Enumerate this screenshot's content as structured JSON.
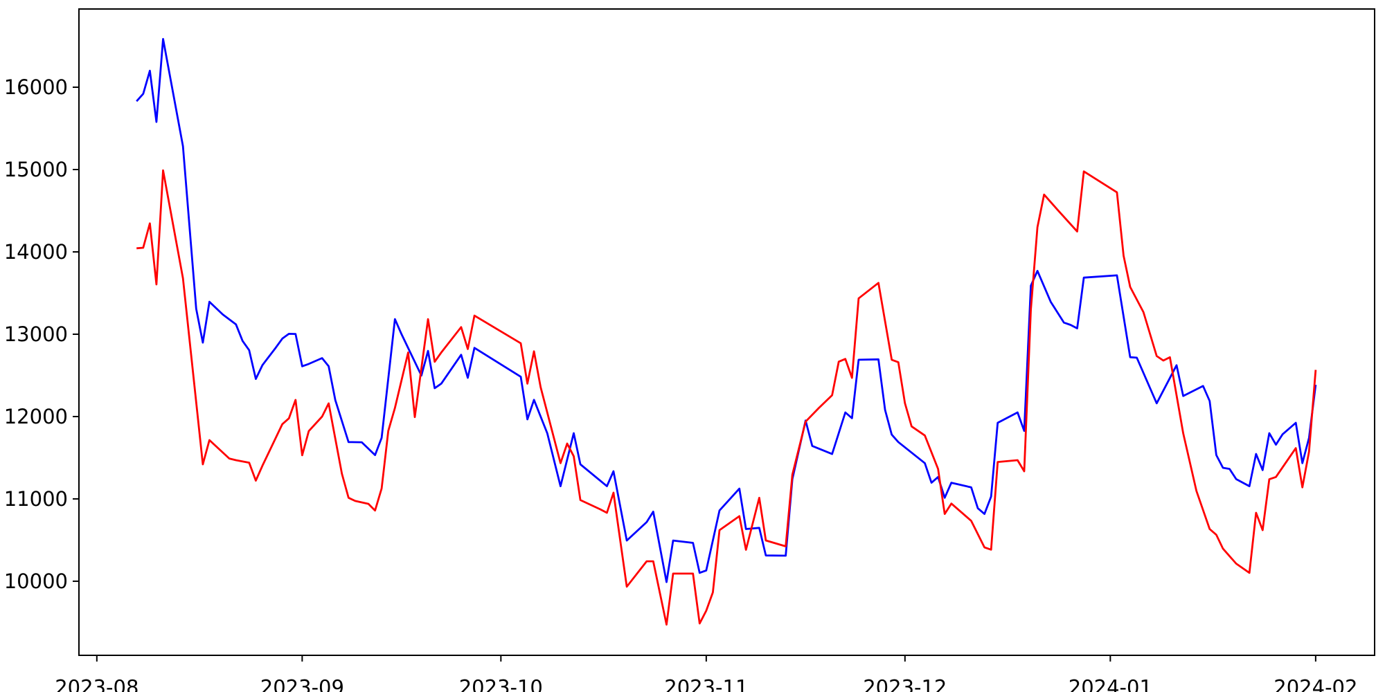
{
  "figure": {
    "kind": "matplotlib-line-plot",
    "background": "#ffffff",
    "title": "",
    "xlabel": "",
    "ylabel": "",
    "grid": false,
    "legend": null
  },
  "colors": {
    "axis": "#000000",
    "tick_label": "#000000",
    "series_blue": "#0000ff",
    "series_red": "#ff0000"
  },
  "chart_data": {
    "type": "line",
    "title": "",
    "xlabel": "",
    "ylabel": "",
    "x_unit": "days_since_2023-08-01",
    "xlim": [
      -2.7,
      192.9
    ],
    "ylim": [
      9100,
      16950
    ],
    "grid": false,
    "legend_position": "none",
    "x_ticks": [
      {
        "label": "2023-08",
        "day": 0
      },
      {
        "label": "2023-09",
        "day": 31
      },
      {
        "label": "2023-10",
        "day": 61
      },
      {
        "label": "2023-11",
        "day": 92
      },
      {
        "label": "2023-12",
        "day": 122
      },
      {
        "label": "2024-01",
        "day": 153
      },
      {
        "label": "2024-02",
        "day": 184
      }
    ],
    "y_ticks": [
      10000,
      11000,
      12000,
      13000,
      14000,
      15000,
      16000
    ],
    "series": [
      {
        "name": "blue",
        "color": "#0000ff",
        "points": [
          [
            6,
            15830
          ],
          [
            7,
            15920
          ],
          [
            8,
            16200
          ],
          [
            9,
            15578
          ],
          [
            10,
            16586
          ],
          [
            13,
            15284
          ],
          [
            15,
            13310
          ],
          [
            16,
            12898
          ],
          [
            17,
            13394
          ],
          [
            19,
            13240
          ],
          [
            21,
            13120
          ],
          [
            22,
            12918
          ],
          [
            23,
            12806
          ],
          [
            24,
            12457
          ],
          [
            25,
            12625
          ],
          [
            27,
            12835
          ],
          [
            28,
            12947
          ],
          [
            29,
            13005
          ],
          [
            30,
            13003
          ],
          [
            31,
            12611
          ],
          [
            32,
            12639
          ],
          [
            34,
            12710
          ],
          [
            35,
            12611
          ],
          [
            36,
            12200
          ],
          [
            38,
            11690
          ],
          [
            40,
            11688
          ],
          [
            42,
            11532
          ],
          [
            43,
            11742
          ],
          [
            45,
            13183
          ],
          [
            46,
            13001
          ],
          [
            49,
            12498
          ],
          [
            50,
            12797
          ],
          [
            51,
            12344
          ],
          [
            52,
            12400
          ],
          [
            55,
            12750
          ],
          [
            56,
            12470
          ],
          [
            57,
            12834
          ],
          [
            64,
            12484
          ],
          [
            65,
            11966
          ],
          [
            66,
            12203
          ],
          [
            68,
            11797
          ],
          [
            70,
            11154
          ],
          [
            72,
            11798
          ],
          [
            73,
            11420
          ],
          [
            77,
            11154
          ],
          [
            78,
            11336
          ],
          [
            80,
            10494
          ],
          [
            83,
            10718
          ],
          [
            84,
            10845
          ],
          [
            86,
            9990
          ],
          [
            87,
            10494
          ],
          [
            90,
            10466
          ],
          [
            91,
            10102
          ],
          [
            92,
            10130
          ],
          [
            94,
            10859
          ],
          [
            97,
            11125
          ],
          [
            98,
            10634
          ],
          [
            100,
            10648
          ],
          [
            101,
            10313
          ],
          [
            104,
            10310
          ],
          [
            105,
            11240
          ],
          [
            107,
            11952
          ],
          [
            108,
            11643
          ],
          [
            111,
            11545
          ],
          [
            113,
            12050
          ],
          [
            114,
            11980
          ],
          [
            115,
            12690
          ],
          [
            118,
            12695
          ],
          [
            119,
            12080
          ],
          [
            120,
            11780
          ],
          [
            121,
            11690
          ],
          [
            125,
            11434
          ],
          [
            126,
            11196
          ],
          [
            127,
            11266
          ],
          [
            128,
            11014
          ],
          [
            129,
            11196
          ],
          [
            132,
            11140
          ],
          [
            133,
            10887
          ],
          [
            134,
            10817
          ],
          [
            135,
            11028
          ],
          [
            136,
            11924
          ],
          [
            139,
            12050
          ],
          [
            140,
            11826
          ],
          [
            141,
            13590
          ],
          [
            142,
            13770
          ],
          [
            144,
            13393
          ],
          [
            146,
            13141
          ],
          [
            147,
            13113
          ],
          [
            148,
            13071
          ],
          [
            149,
            13687
          ],
          [
            154,
            13715
          ],
          [
            156,
            12721
          ],
          [
            157,
            12715
          ],
          [
            160,
            12161
          ],
          [
            163,
            12623
          ],
          [
            164,
            12250
          ],
          [
            167,
            12371
          ],
          [
            168,
            12189
          ],
          [
            169,
            11532
          ],
          [
            170,
            11378
          ],
          [
            171,
            11364
          ],
          [
            172,
            11240
          ],
          [
            174,
            11154
          ],
          [
            175,
            11546
          ],
          [
            176,
            11350
          ],
          [
            177,
            11798
          ],
          [
            178,
            11658
          ],
          [
            179,
            11784
          ],
          [
            181,
            11924
          ],
          [
            182,
            11434
          ],
          [
            183,
            11742
          ],
          [
            184,
            12385
          ]
        ]
      },
      {
        "name": "red",
        "color": "#ff0000",
        "points": [
          [
            6,
            14044
          ],
          [
            7,
            14050
          ],
          [
            8,
            14346
          ],
          [
            9,
            13605
          ],
          [
            10,
            14990
          ],
          [
            13,
            13680
          ],
          [
            16,
            11420
          ],
          [
            17,
            11714
          ],
          [
            20,
            11490
          ],
          [
            21,
            11470
          ],
          [
            23,
            11440
          ],
          [
            24,
            11222
          ],
          [
            25,
            11404
          ],
          [
            28,
            11908
          ],
          [
            29,
            11978
          ],
          [
            30,
            12202
          ],
          [
            31,
            11530
          ],
          [
            32,
            11824
          ],
          [
            34,
            12000
          ],
          [
            35,
            12160
          ],
          [
            37,
            11306
          ],
          [
            38,
            11014
          ],
          [
            39,
            10975
          ],
          [
            41,
            10940
          ],
          [
            42,
            10859
          ],
          [
            43,
            11126
          ],
          [
            44,
            11826
          ],
          [
            45,
            12105
          ],
          [
            47,
            12778
          ],
          [
            48,
            11994
          ],
          [
            50,
            13183
          ],
          [
            51,
            12665
          ],
          [
            52,
            12778
          ],
          [
            55,
            13086
          ],
          [
            56,
            12820
          ],
          [
            57,
            13226
          ],
          [
            64,
            12890
          ],
          [
            65,
            12400
          ],
          [
            66,
            12792
          ],
          [
            67,
            12357
          ],
          [
            70,
            11434
          ],
          [
            71,
            11672
          ],
          [
            72,
            11518
          ],
          [
            73,
            10986
          ],
          [
            76,
            10873
          ],
          [
            77,
            10831
          ],
          [
            78,
            11075
          ],
          [
            80,
            9934
          ],
          [
            83,
            10242
          ],
          [
            84,
            10242
          ],
          [
            86,
            9473
          ],
          [
            87,
            10093
          ],
          [
            90,
            10093
          ],
          [
            91,
            9487
          ],
          [
            92,
            9641
          ],
          [
            93,
            9865
          ],
          [
            94,
            10620
          ],
          [
            97,
            10790
          ],
          [
            98,
            10382
          ],
          [
            100,
            11013
          ],
          [
            101,
            10495
          ],
          [
            104,
            10424
          ],
          [
            105,
            11294
          ],
          [
            107,
            11938
          ],
          [
            109,
            12105
          ],
          [
            111,
            12259
          ],
          [
            112,
            12666
          ],
          [
            113,
            12700
          ],
          [
            114,
            12470
          ],
          [
            115,
            13435
          ],
          [
            118,
            13623
          ],
          [
            120,
            12690
          ],
          [
            121,
            12660
          ],
          [
            122,
            12161
          ],
          [
            123,
            11880
          ],
          [
            125,
            11770
          ],
          [
            127,
            11364
          ],
          [
            128,
            10817
          ],
          [
            129,
            10943
          ],
          [
            132,
            10733
          ],
          [
            134,
            10411
          ],
          [
            135,
            10383
          ],
          [
            136,
            11448
          ],
          [
            139,
            11470
          ],
          [
            140,
            11336
          ],
          [
            141,
            13300
          ],
          [
            142,
            14300
          ],
          [
            143,
            14696
          ],
          [
            145,
            14514
          ],
          [
            148,
            14248
          ],
          [
            149,
            14977
          ],
          [
            154,
            14724
          ],
          [
            155,
            13954
          ],
          [
            156,
            13575
          ],
          [
            158,
            13268
          ],
          [
            160,
            12735
          ],
          [
            161,
            12680
          ],
          [
            162,
            12721
          ],
          [
            164,
            11797
          ],
          [
            166,
            11097
          ],
          [
            168,
            10634
          ],
          [
            169,
            10564
          ],
          [
            170,
            10396
          ],
          [
            172,
            10214
          ],
          [
            174,
            10102
          ],
          [
            175,
            10831
          ],
          [
            176,
            10620
          ],
          [
            177,
            11238
          ],
          [
            178,
            11266
          ],
          [
            181,
            11616
          ],
          [
            182,
            11140
          ],
          [
            183,
            11574
          ],
          [
            184,
            12567
          ]
        ]
      }
    ]
  }
}
